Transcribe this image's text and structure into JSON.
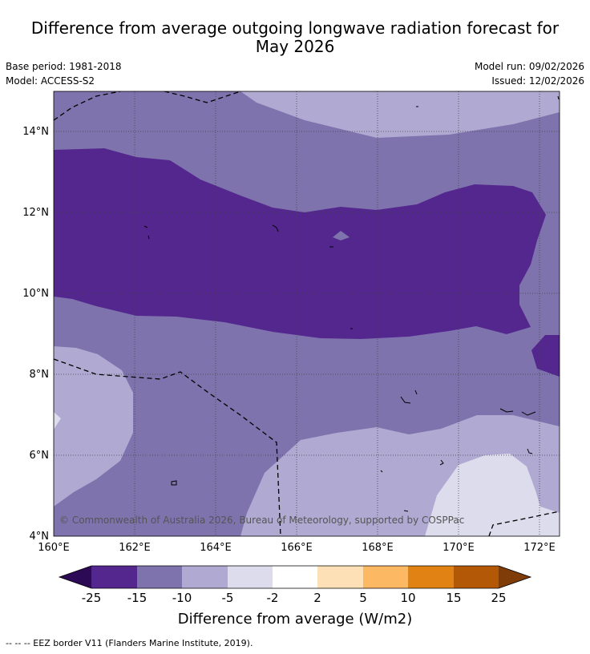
{
  "title": {
    "line1": "Difference from average outgoing longwave radiation forecast for",
    "line2": "May 2026"
  },
  "meta": {
    "base_period": "Base period: 1981-2018",
    "model": "Model: ACCESS-S2",
    "model_run": "Model run: 09/02/2026",
    "issued": "Issued: 12/02/2026"
  },
  "map": {
    "lat_labels": [
      "14°N",
      "12°N",
      "10°N",
      "8°N",
      "6°N",
      "4°N"
    ],
    "lon_labels": [
      "160°E",
      "162°E",
      "164°E",
      "166°E",
      "168°E",
      "170°E",
      "172°E"
    ],
    "copyright": "© Commonwealth of Australia 2026, Bureau of Meteorology, supported by COSPPac"
  },
  "colorbar": {
    "ticks": [
      "-25",
      "-15",
      "-10",
      "-5",
      "-2",
      "2",
      "5",
      "10",
      "15",
      "25"
    ],
    "colors": [
      "#2d0a55",
      "#54278f",
      "#7e73ad",
      "#b0a9d1",
      "#dcdced",
      "#ffffff",
      "#fee0b6",
      "#fdb863",
      "#e08214",
      "#b35806",
      "#7f3b08"
    ],
    "label": "Difference from average (W/m2)"
  },
  "footer": "--  --  -- EEZ border V11 (Flanders Marine Institute, 2019)."
}
